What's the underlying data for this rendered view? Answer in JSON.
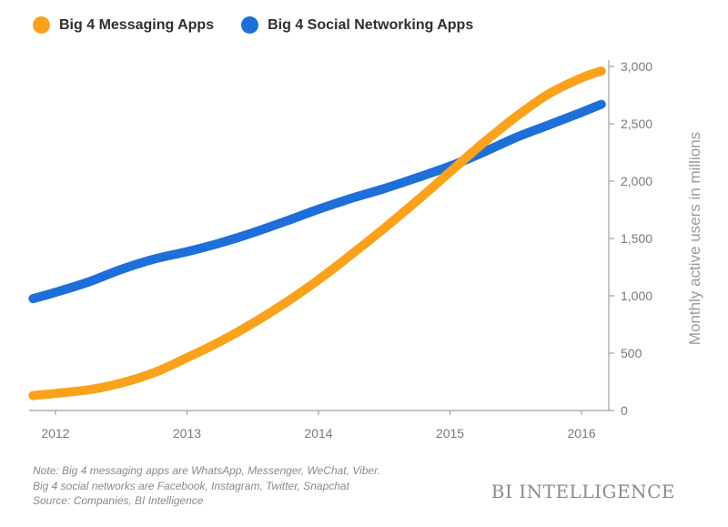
{
  "legend": {
    "series_1_label": "Big 4 Messaging Apps",
    "series_2_label": "Big 4 Social Networking Apps"
  },
  "footnote": {
    "line1": "Note: Big 4 messaging apps are WhatsApp, Messenger, WeChat, Viber.",
    "line2": "Big 4 social networks are Facebook, Instagram, Twitter, Snapchat",
    "line3": "Source: Companies, BI Intelligence"
  },
  "brand": "BI INTELLIGENCE",
  "colors": {
    "messaging": "#FBA21C",
    "social": "#1E6FD9",
    "axis": "#a0a0a0",
    "tick_text": "#7a7a7a"
  },
  "chart_data": {
    "type": "line",
    "title": "",
    "xlabel": "",
    "ylabel": "Monthly active users in millions",
    "xlim": [
      2011.8,
      2016.2
    ],
    "ylim": [
      0,
      3000
    ],
    "x_ticks": [
      2012,
      2013,
      2014,
      2015,
      2016
    ],
    "y_ticks": [
      0,
      500,
      1000,
      1500,
      2000,
      2500,
      3000
    ],
    "y_tick_labels": [
      "0",
      "500",
      "1,000",
      "1,500",
      "2,000",
      "2,500",
      "3,000"
    ],
    "grid": false,
    "legend_position": "top-left",
    "series": [
      {
        "name": "Big 4 Messaging Apps",
        "color": "#FBA21C",
        "x": [
          2011.83,
          2012.25,
          2012.5,
          2012.75,
          2013.0,
          2013.25,
          2013.5,
          2013.75,
          2014.0,
          2014.25,
          2014.5,
          2014.75,
          2015.0,
          2015.25,
          2015.5,
          2015.75,
          2016.0,
          2016.15
        ],
        "y": [
          130,
          180,
          240,
          330,
          460,
          600,
          760,
          940,
          1140,
          1360,
          1590,
          1830,
          2080,
          2330,
          2560,
          2760,
          2900,
          2960
        ]
      },
      {
        "name": "Big 4 Social Networking Apps",
        "color": "#1E6FD9",
        "x": [
          2011.83,
          2012.0,
          2012.25,
          2012.5,
          2012.75,
          2013.0,
          2013.25,
          2013.5,
          2013.75,
          2014.0,
          2014.25,
          2014.5,
          2014.75,
          2015.0,
          2015.25,
          2015.5,
          2015.75,
          2016.0,
          2016.15
        ],
        "y": [
          975,
          1030,
          1120,
          1230,
          1320,
          1385,
          1460,
          1550,
          1650,
          1755,
          1850,
          1935,
          2030,
          2130,
          2250,
          2380,
          2490,
          2600,
          2670
        ]
      }
    ]
  }
}
